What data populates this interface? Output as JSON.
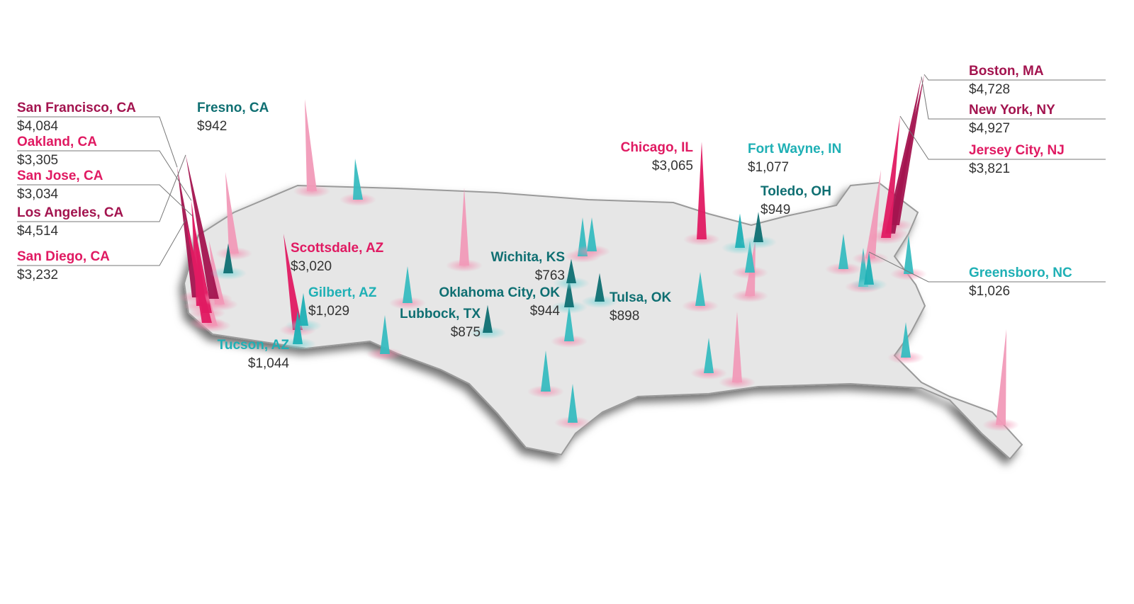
{
  "chart_data": {
    "type": "map",
    "categories": [
      "San Francisco, CA",
      "Oakland, CA",
      "San Jose, CA",
      "Los Angeles, CA",
      "San Diego, CA",
      "Fresno, CA",
      "Scottsdale, AZ",
      "Gilbert, AZ",
      "Tucson, AZ",
      "Lubbock, TX",
      "Oklahoma City, OK",
      "Wichita, KS",
      "Tulsa, OK",
      "Chicago, IL",
      "Fort Wayne, IN",
      "Toledo, OH",
      "Boston, MA",
      "New York, NY",
      "Jersey City, NJ",
      "Greensboro, NC"
    ],
    "values": [
      4084,
      3305,
      3034,
      4514,
      3232,
      942,
      3020,
      1029,
      1044,
      875,
      944,
      763,
      898,
      3065,
      1077,
      949,
      4728,
      4927,
      3821,
      1026
    ],
    "value_labels": [
      "$4,084",
      "$3,305",
      "$3,034",
      "$4,514",
      "$3,232",
      "$942",
      "$3,020",
      "$1,029",
      "$1,044",
      "$875",
      "$944",
      "$763",
      "$898",
      "$3,065",
      "$1,077",
      "$949",
      "$4,728",
      "$4,927",
      "$3,821",
      "$1,026"
    ],
    "colors": [
      "#a3144f",
      "#e01a62",
      "#e01a62",
      "#a3144f",
      "#e01a62",
      "#0f6f72",
      "#e01a62",
      "#1fb0b5",
      "#1fb0b5",
      "#0f6f72",
      "#0f6f72",
      "#0f6f72",
      "#0f6f72",
      "#e01a62",
      "#1fb0b5",
      "#0f6f72",
      "#a3144f",
      "#a3144f",
      "#e01a62",
      "#1fb0b5"
    ]
  }
}
